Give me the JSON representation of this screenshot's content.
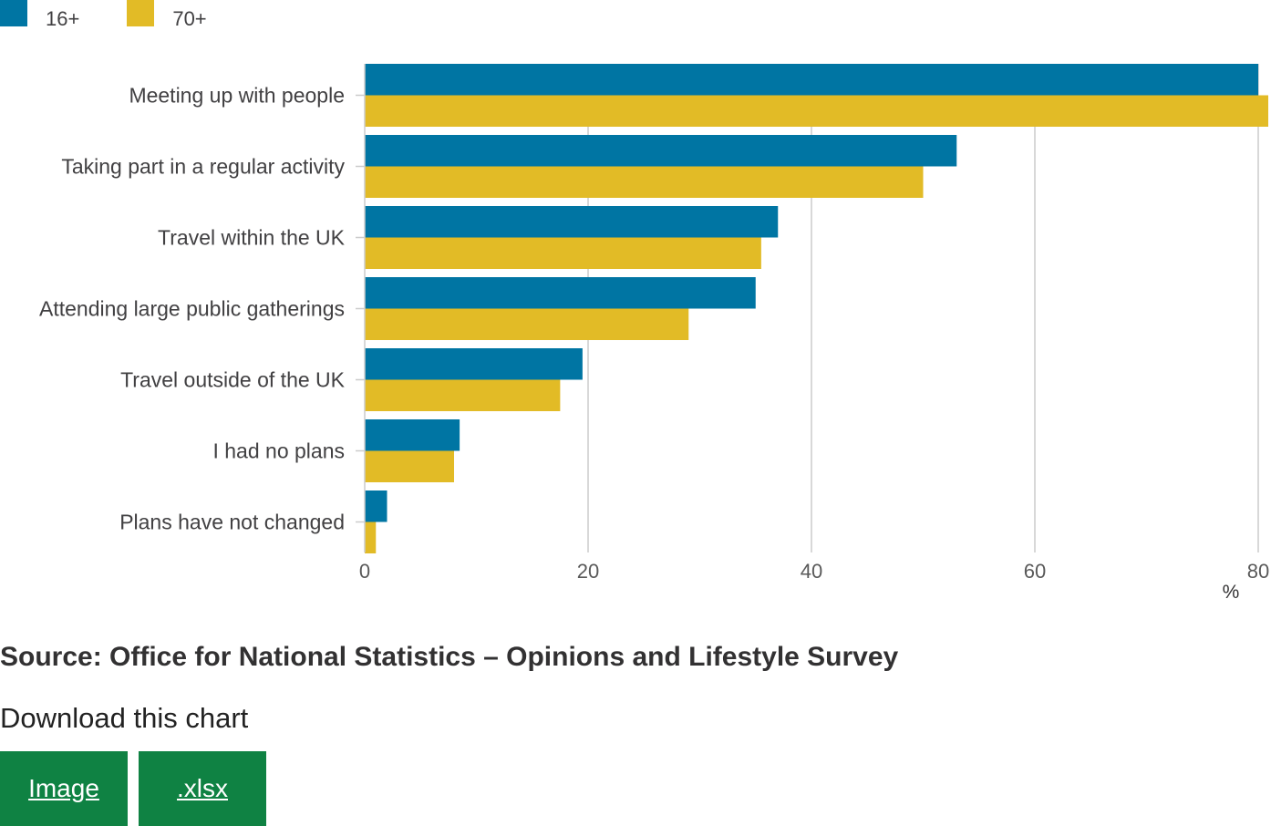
{
  "legend": [
    {
      "label": "16+",
      "color": "#0075a3"
    },
    {
      "label": "70+",
      "color": "#e2bb26"
    }
  ],
  "chart_data": {
    "type": "bar",
    "orientation": "horizontal",
    "categories": [
      "Meeting up with people",
      "Taking part in a regular activity",
      "Travel within the UK",
      "Attending large public gatherings",
      "Travel outside of the UK",
      "I had no plans",
      "Plans have not changed"
    ],
    "series": [
      {
        "name": "16+",
        "color": "#0075a3",
        "values": [
          80,
          53,
          37,
          35,
          19.5,
          8.5,
          2
        ]
      },
      {
        "name": "70+",
        "color": "#e2bb26",
        "values": [
          81,
          50,
          35.5,
          29,
          17.5,
          8,
          1
        ]
      }
    ],
    "xlim": [
      0,
      80
    ],
    "xticks": [
      0,
      20,
      40,
      60,
      80
    ],
    "xlabel": "%",
    "ylabel": "",
    "grid": true,
    "legend_position": "top-left"
  },
  "source": "Source: Office for National Statistics – Opinions and Lifestyle Survey",
  "download": {
    "title": "Download this chart",
    "buttons": [
      {
        "label": "Image"
      },
      {
        "label": ".xlsx"
      }
    ]
  }
}
